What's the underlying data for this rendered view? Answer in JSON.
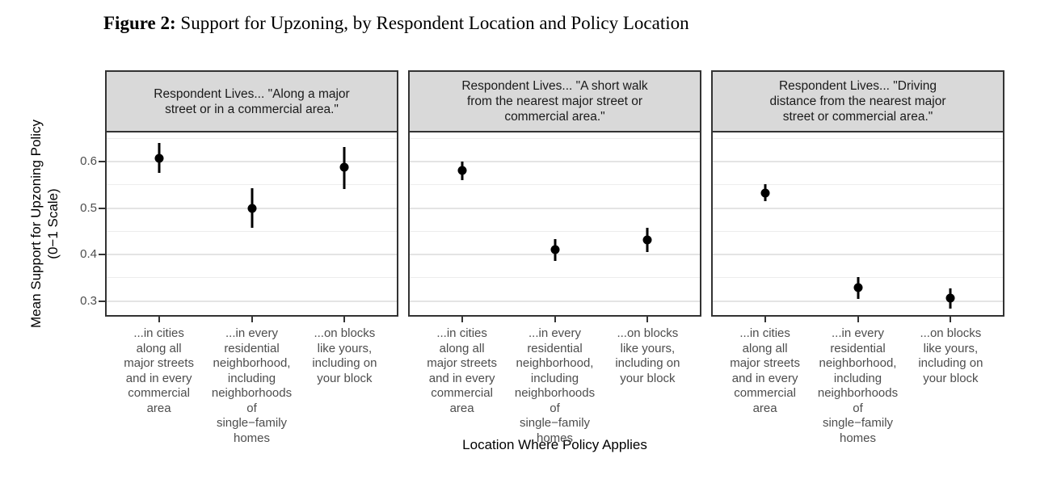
{
  "title": {
    "prefix": "Figure 2:",
    "text": " Support for Upzoning, by Respondent Location and Policy Location"
  },
  "chart_data": {
    "type": "pointrange",
    "title": "Support for Upzoning, by Respondent Location and Policy Location",
    "xlabel": "Location Where Policy Applies",
    "ylabel": "Mean Support for Upzoning Policy\n(0−1 Scale)",
    "ylim": [
      0.27,
      0.663
    ],
    "y_major_ticks": [
      0.6,
      0.5,
      0.4,
      0.3
    ],
    "y_minor_gridlines": [
      0.65,
      0.55,
      0.45,
      0.35
    ],
    "grid": true,
    "legend": "none",
    "categories": [
      "...in cities along all major streets and in every commercial area",
      "...in every residential neighborhood, including neighborhoods of single−family homes",
      "...on blocks like yours, including on your block"
    ],
    "category_labels_wrapped": [
      "...in cities\nalong all\nmajor streets\nand in every\ncommercial\narea",
      "...in every\nresidential\nneighborhood,\nincluding\nneighborhoods\nof\nsingle−family\nhomes",
      "...on blocks\nlike yours,\nincluding on\nyour block"
    ],
    "panels": [
      {
        "facet_label": "Respondent Lives... \"Along a major\nstreet or in a commercial area.\"",
        "points": [
          {
            "category_index": 0,
            "mean": 0.608,
            "ci_low": 0.576,
            "ci_high": 0.641
          },
          {
            "category_index": 1,
            "mean": 0.5,
            "ci_low": 0.457,
            "ci_high": 0.543
          },
          {
            "category_index": 2,
            "mean": 0.588,
            "ci_low": 0.541,
            "ci_high": 0.632
          }
        ]
      },
      {
        "facet_label": "Respondent Lives... \"A short walk\nfrom the nearest major street or\ncommercial area.\"",
        "points": [
          {
            "category_index": 0,
            "mean": 0.581,
            "ci_low": 0.56,
            "ci_high": 0.601
          },
          {
            "category_index": 1,
            "mean": 0.41,
            "ci_low": 0.387,
            "ci_high": 0.433
          },
          {
            "category_index": 2,
            "mean": 0.432,
            "ci_low": 0.406,
            "ci_high": 0.457
          }
        ]
      },
      {
        "facet_label": "Respondent Lives... \"Driving\ndistance from the nearest major\nstreet or commercial area.\"",
        "points": [
          {
            "category_index": 0,
            "mean": 0.533,
            "ci_low": 0.516,
            "ci_high": 0.551
          },
          {
            "category_index": 1,
            "mean": 0.329,
            "ci_low": 0.305,
            "ci_high": 0.351
          },
          {
            "category_index": 2,
            "mean": 0.306,
            "ci_low": 0.284,
            "ci_high": 0.327
          }
        ]
      }
    ],
    "colors": {
      "point": "#000000",
      "strip_background": "#D9D9D9",
      "panel_border": "#333333",
      "grid_major": "#E4E4E4",
      "grid_minor": "#EDEDED",
      "tick_label": "#4D4D4D"
    }
  }
}
